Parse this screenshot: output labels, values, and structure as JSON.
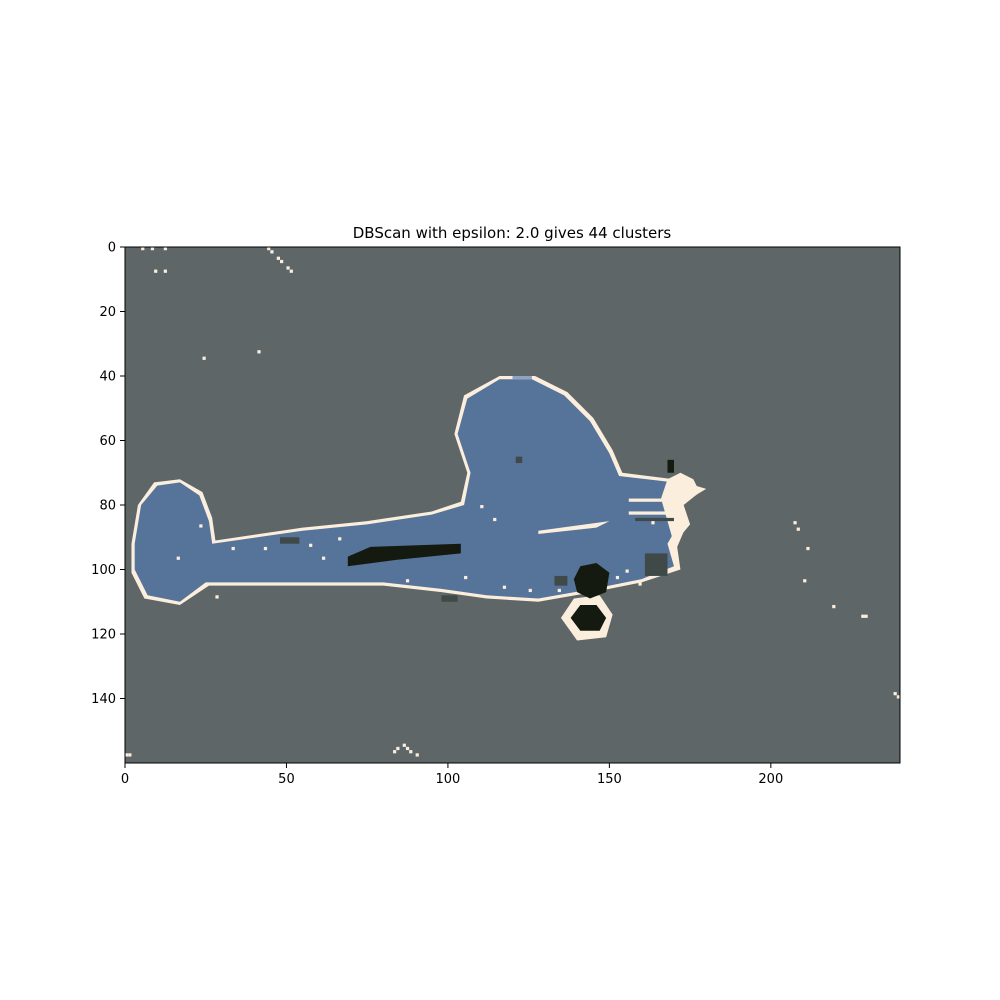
{
  "chart_data": {
    "type": "heatmap",
    "title": "DBScan with epsilon: 2.0 gives 44 clusters",
    "xlabel": "",
    "ylabel": "",
    "image_size": [
      240,
      160
    ],
    "xlim": [
      0,
      240
    ],
    "ylim": [
      160,
      0
    ],
    "x_ticks": [
      0,
      50,
      100,
      150,
      200
    ],
    "y_ticks": [
      0,
      20,
      40,
      60,
      80,
      100,
      120,
      140
    ],
    "grid": false,
    "colors": {
      "background": "#5e6668",
      "body": "#56739a",
      "edge": "#fbeedd",
      "dark": "#141a10",
      "dark_gray": "#3f4a48",
      "light_blue": "#8fa2c4"
    },
    "regions": {
      "fuselage": [
        [
          3,
          92
        ],
        [
          5,
          80
        ],
        [
          10,
          74
        ],
        [
          17,
          73
        ],
        [
          23,
          77
        ],
        [
          26,
          85
        ],
        [
          27,
          92
        ],
        [
          55,
          88
        ],
        [
          75,
          86
        ],
        [
          95,
          83
        ],
        [
          105,
          80
        ],
        [
          107,
          70
        ],
        [
          103,
          58
        ],
        [
          106,
          47
        ],
        [
          116,
          41
        ],
        [
          126,
          41
        ],
        [
          136,
          46
        ],
        [
          144,
          54
        ],
        [
          150,
          64
        ],
        [
          153,
          71
        ],
        [
          170,
          73
        ],
        [
          176,
          76
        ],
        [
          168,
          80
        ],
        [
          172,
          85
        ],
        [
          168,
          92
        ],
        [
          170,
          99
        ],
        [
          160,
          103
        ],
        [
          145,
          106
        ],
        [
          128,
          109
        ],
        [
          112,
          108
        ],
        [
          98,
          106
        ],
        [
          80,
          104
        ],
        [
          60,
          104
        ],
        [
          40,
          104
        ],
        [
          25,
          104
        ],
        [
          17,
          110
        ],
        [
          7,
          108
        ],
        [
          3,
          100
        ]
      ],
      "edge_outline": [
        [
          2,
          92
        ],
        [
          4,
          80
        ],
        [
          9,
          73
        ],
        [
          17,
          72
        ],
        [
          24,
          76
        ],
        [
          27,
          84
        ],
        [
          28,
          91
        ],
        [
          55,
          87
        ],
        [
          75,
          85
        ],
        [
          95,
          82
        ],
        [
          104,
          79
        ],
        [
          106,
          70
        ],
        [
          102,
          58
        ],
        [
          105,
          46
        ],
        [
          116,
          40
        ],
        [
          127,
          40
        ],
        [
          137,
          45
        ],
        [
          145,
          53
        ],
        [
          151,
          63
        ],
        [
          154,
          70
        ],
        [
          170,
          72
        ],
        [
          180,
          75
        ],
        [
          175,
          78
        ],
        [
          170,
          80
        ],
        [
          174,
          86
        ],
        [
          171,
          93
        ],
        [
          172,
          100
        ],
        [
          160,
          104
        ],
        [
          145,
          107
        ],
        [
          128,
          110
        ],
        [
          112,
          109
        ],
        [
          98,
          107
        ],
        [
          80,
          105
        ],
        [
          60,
          105
        ],
        [
          40,
          105
        ],
        [
          26,
          105
        ],
        [
          17,
          111
        ],
        [
          6,
          109
        ],
        [
          2,
          101
        ]
      ],
      "gun_barrel": [
        [
          69,
          96
        ],
        [
          76,
          93
        ],
        [
          104,
          92
        ],
        [
          104,
          95
        ],
        [
          84,
          97
        ],
        [
          69,
          99
        ]
      ],
      "wheel_upper": [
        [
          139,
          103
        ],
        [
          141,
          99
        ],
        [
          146,
          98
        ],
        [
          150,
          101
        ],
        [
          149,
          107
        ],
        [
          144,
          109
        ],
        [
          140,
          107
        ]
      ],
      "wheel_lower": [
        [
          138,
          115
        ],
        [
          141,
          111
        ],
        [
          146,
          111
        ],
        [
          149,
          115
        ],
        [
          147,
          119
        ],
        [
          141,
          119
        ]
      ],
      "wheel_lower_ring": [
        [
          135,
          115
        ],
        [
          139,
          109
        ],
        [
          147,
          108
        ],
        [
          151,
          114
        ],
        [
          149,
          121
        ],
        [
          140,
          122
        ]
      ]
    }
  }
}
